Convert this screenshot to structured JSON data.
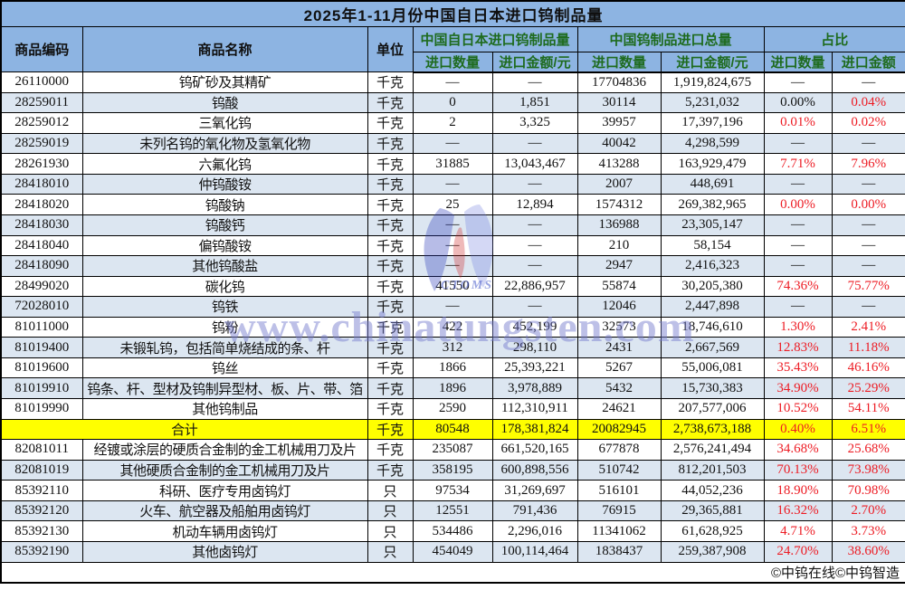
{
  "title": "2025年1-11月份中国自日本进口钨制品量",
  "columns": {
    "code": "商品编码",
    "name": "商品名称",
    "unit": "单位",
    "japan_group": "中国自日本进口钨制品量",
    "total_group": "中国钨制品进口总量",
    "ratio_group": "占比",
    "japan_qty": "进口数量",
    "japan_amt": "进口金额/元",
    "total_qty": "进口数量",
    "total_amt": "进口金额/元",
    "ratio_qty": "进口数量",
    "ratio_amt": "进口金额"
  },
  "rows": [
    {
      "code": "26110000",
      "name": "钨矿砂及其精矿",
      "unit": "千克",
      "jq": "—",
      "ja": "—",
      "cq": "17704836",
      "ca": "1,919,824,675",
      "rq": "—",
      "ra": "—"
    },
    {
      "code": "28259011",
      "name": "钨酸",
      "unit": "千克",
      "jq": "0",
      "ja": "1,851",
      "cq": "30114",
      "ca": "5,231,032",
      "rq": "0.00%",
      "ra": "0.04%",
      "rq_black": true
    },
    {
      "code": "28259012",
      "name": "三氧化钨",
      "unit": "千克",
      "jq": "2",
      "ja": "3,325",
      "cq": "39957",
      "ca": "17,397,196",
      "rq": "0.01%",
      "ra": "0.02%"
    },
    {
      "code": "28259019",
      "name": "未列名钨的氧化物及氢氧化物",
      "unit": "千克",
      "jq": "—",
      "ja": "—",
      "cq": "40042",
      "ca": "4,298,599",
      "rq": "—",
      "ra": "—"
    },
    {
      "code": "28261930",
      "name": "六氟化钨",
      "unit": "千克",
      "jq": "31885",
      "ja": "13,043,467",
      "cq": "413288",
      "ca": "163,929,479",
      "rq": "7.71%",
      "ra": "7.96%"
    },
    {
      "code": "28418010",
      "name": "仲钨酸铵",
      "unit": "千克",
      "jq": "—",
      "ja": "—",
      "cq": "2007",
      "ca": "448,691",
      "rq": "—",
      "ra": "—"
    },
    {
      "code": "28418020",
      "name": "钨酸钠",
      "unit": "千克",
      "jq": "25",
      "ja": "12,894",
      "cq": "1574312",
      "ca": "269,382,965",
      "rq": "0.00%",
      "ra": "0.00%"
    },
    {
      "code": "28418030",
      "name": "钨酸钙",
      "unit": "千克",
      "jq": "—",
      "ja": "—",
      "cq": "136988",
      "ca": "23,305,147",
      "rq": "—",
      "ra": "—"
    },
    {
      "code": "28418040",
      "name": "偏钨酸铵",
      "unit": "千克",
      "jq": "—",
      "ja": "—",
      "cq": "210",
      "ca": "58,154",
      "rq": "—",
      "ra": "—"
    },
    {
      "code": "28418090",
      "name": "其他钨酸盐",
      "unit": "千克",
      "jq": "—",
      "ja": "—",
      "cq": "2947",
      "ca": "2,416,323",
      "rq": "—",
      "ra": "—"
    },
    {
      "code": "28499020",
      "name": "碳化钨",
      "unit": "千克",
      "jq": "41550",
      "ja": "22,886,957",
      "cq": "55874",
      "ca": "30,205,380",
      "rq": "74.36%",
      "ra": "75.77%"
    },
    {
      "code": "72028010",
      "name": "钨铁",
      "unit": "千克",
      "jq": "—",
      "ja": "—",
      "cq": "12046",
      "ca": "2,447,898",
      "rq": "—",
      "ra": "—"
    },
    {
      "code": "81011000",
      "name": "钨粉",
      "unit": "千克",
      "jq": "422",
      "ja": "452,199",
      "cq": "32573",
      "ca": "18,746,610",
      "rq": "1.30%",
      "ra": "2.41%"
    },
    {
      "code": "81019400",
      "name": "未锻轧钨，包括简单烧结成的条、杆",
      "unit": "千克",
      "jq": "312",
      "ja": "298,110",
      "cq": "2431",
      "ca": "2,667,569",
      "rq": "12.83%",
      "ra": "11.18%"
    },
    {
      "code": "81019600",
      "name": "钨丝",
      "unit": "千克",
      "jq": "1866",
      "ja": "25,393,221",
      "cq": "5267",
      "ca": "55,006,081",
      "rq": "35.43%",
      "ra": "46.16%"
    },
    {
      "code": "81019910",
      "name": "钨条、杆、型材及钨制异型材、板、片、带、箔",
      "unit": "千克",
      "jq": "1896",
      "ja": "3,978,889",
      "cq": "5432",
      "ca": "15,730,383",
      "rq": "34.90%",
      "ra": "25.29%"
    },
    {
      "code": "81019990",
      "name": "其他钨制品",
      "unit": "千克",
      "jq": "2590",
      "ja": "112,310,911",
      "cq": "24621",
      "ca": "207,577,006",
      "rq": "10.52%",
      "ra": "54.11%"
    },
    {
      "total": true,
      "name": "合计",
      "unit": "千克",
      "jq": "80548",
      "ja": "178,381,824",
      "cq": "20082945",
      "ca": "2,738,673,188",
      "rq": "0.40%",
      "ra": "6.51%"
    },
    {
      "code": "82081011",
      "name": "经镀或涂层的硬质合金制的金工机械用刀及片",
      "unit": "千克",
      "jq": "235087",
      "ja": "661,520,165",
      "cq": "677878",
      "ca": "2,576,241,494",
      "rq": "34.68%",
      "ra": "25.68%"
    },
    {
      "code": "82081019",
      "name": "其他硬质合金制的金工机械用刀及片",
      "unit": "千克",
      "jq": "358195",
      "ja": "600,898,556",
      "cq": "510742",
      "ca": "812,201,503",
      "rq": "70.13%",
      "ra": "73.98%"
    },
    {
      "code": "85392110",
      "name": "科研、医疗专用卤钨灯",
      "unit": "只",
      "jq": "97534",
      "ja": "31,269,697",
      "cq": "516101",
      "ca": "44,052,236",
      "rq": "18.90%",
      "ra": "70.98%"
    },
    {
      "code": "85392120",
      "name": "火车、航空器及船舶用卤钨灯",
      "unit": "只",
      "jq": "12551",
      "ja": "791,436",
      "cq": "76915",
      "ca": "29,365,881",
      "rq": "16.32%",
      "ra": "2.70%"
    },
    {
      "code": "85392130",
      "name": "机动车辆用卤钨灯",
      "unit": "只",
      "jq": "534486",
      "ja": "2,296,016",
      "cq": "11341062",
      "ca": "61,628,925",
      "rq": "4.71%",
      "ra": "3.73%"
    },
    {
      "code": "85392190",
      "name": "其他卤钨灯",
      "unit": "只",
      "jq": "454049",
      "ja": "100,114,464",
      "cq": "1838437",
      "ca": "259,387,908",
      "rq": "24.70%",
      "ra": "38.60%"
    }
  ],
  "footer": {
    "credit": "©中钨在线©中钨智造"
  },
  "watermark": {
    "text": "www.chinatungsten.com",
    "logo_text": "CTOMS"
  },
  "colors": {
    "header_blue": "#8db4e2",
    "row_alt": "#dce6f1",
    "total_yellow": "#ffff00",
    "percent_red": "#ed1c24",
    "header_green": "#1e6b1e",
    "border_black": "#000000",
    "watermark_blue": "#767bcd"
  }
}
